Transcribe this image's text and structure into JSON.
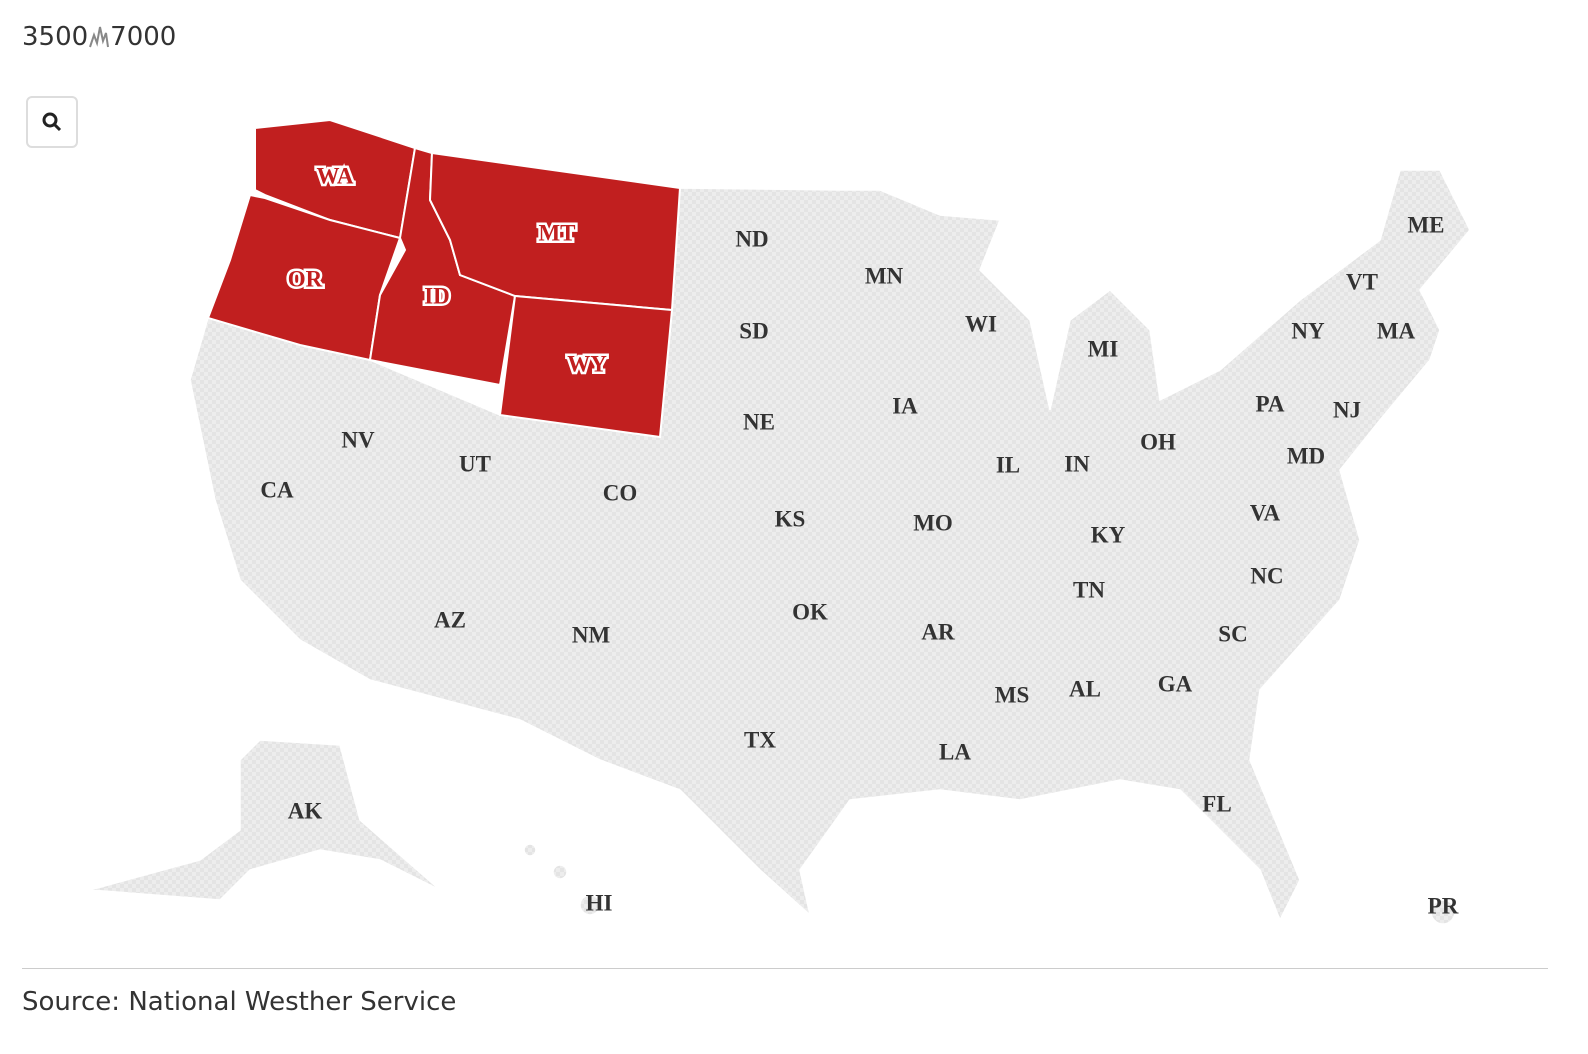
{
  "legend": {
    "min": "3500",
    "max": "7000"
  },
  "map": {
    "highlight_color": "#c11f1f",
    "base_color": "#e4e4e4",
    "states": [
      {
        "label": "WA",
        "highlighted": true
      },
      {
        "label": "OR",
        "highlighted": true
      },
      {
        "label": "ID",
        "highlighted": true
      },
      {
        "label": "MT",
        "highlighted": true
      },
      {
        "label": "WY",
        "highlighted": true
      },
      {
        "label": "ND",
        "highlighted": false
      },
      {
        "label": "SD",
        "highlighted": false
      },
      {
        "label": "NE",
        "highlighted": false
      },
      {
        "label": "KS",
        "highlighted": false
      },
      {
        "label": "OK",
        "highlighted": false
      },
      {
        "label": "TX",
        "highlighted": false
      },
      {
        "label": "NV",
        "highlighted": false
      },
      {
        "label": "CA",
        "highlighted": false
      },
      {
        "label": "UT",
        "highlighted": false
      },
      {
        "label": "CO",
        "highlighted": false
      },
      {
        "label": "AZ",
        "highlighted": false
      },
      {
        "label": "NM",
        "highlighted": false
      },
      {
        "label": "MN",
        "highlighted": false
      },
      {
        "label": "IA",
        "highlighted": false
      },
      {
        "label": "MO",
        "highlighted": false
      },
      {
        "label": "AR",
        "highlighted": false
      },
      {
        "label": "LA",
        "highlighted": false
      },
      {
        "label": "WI",
        "highlighted": false
      },
      {
        "label": "IL",
        "highlighted": false
      },
      {
        "label": "MI",
        "highlighted": false
      },
      {
        "label": "IN",
        "highlighted": false
      },
      {
        "label": "OH",
        "highlighted": false
      },
      {
        "label": "KY",
        "highlighted": false
      },
      {
        "label": "TN",
        "highlighted": false
      },
      {
        "label": "MS",
        "highlighted": false
      },
      {
        "label": "AL",
        "highlighted": false
      },
      {
        "label": "GA",
        "highlighted": false
      },
      {
        "label": "FL",
        "highlighted": false
      },
      {
        "label": "SC",
        "highlighted": false
      },
      {
        "label": "NC",
        "highlighted": false
      },
      {
        "label": "VA",
        "highlighted": false
      },
      {
        "label": "MD",
        "highlighted": false
      },
      {
        "label": "PA",
        "highlighted": false
      },
      {
        "label": "NJ",
        "highlighted": false
      },
      {
        "label": "NY",
        "highlighted": false
      },
      {
        "label": "VT",
        "highlighted": false
      },
      {
        "label": "MA",
        "highlighted": false
      },
      {
        "label": "ME",
        "highlighted": false
      },
      {
        "label": "AK",
        "highlighted": false
      },
      {
        "label": "HI",
        "highlighted": false
      },
      {
        "label": "PR",
        "highlighted": false
      }
    ]
  },
  "source": "Source: National Westher Service"
}
